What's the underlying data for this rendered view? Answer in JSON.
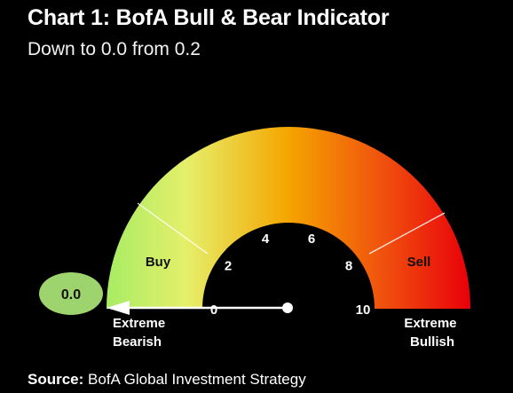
{
  "chart_data": {
    "type": "gauge",
    "title": "Chart 1: BofA Bull & Bear Indicator",
    "subtitle": "Down to 0.0 from 0.2",
    "value": 0.0,
    "value_label": "0.0",
    "previous_value": 0.2,
    "range": [
      0,
      10
    ],
    "ticks": [
      "0",
      "2",
      "4",
      "6",
      "8",
      "10"
    ],
    "zones": [
      {
        "label": "Buy",
        "from": 0,
        "to": 2
      },
      {
        "label": "Sell",
        "from": 8,
        "to": 10
      }
    ],
    "left_label": [
      "Extreme",
      "Bearish"
    ],
    "right_label": [
      "Extreme",
      "Bullish"
    ],
    "colors": {
      "bearish": "#a8ec64",
      "mid": "#f5a500",
      "bullish": "#e8000a",
      "value_bubble": "#9ed46e"
    }
  },
  "source": {
    "prefix": "Source:",
    "text": "BofA Global Investment Strategy"
  }
}
